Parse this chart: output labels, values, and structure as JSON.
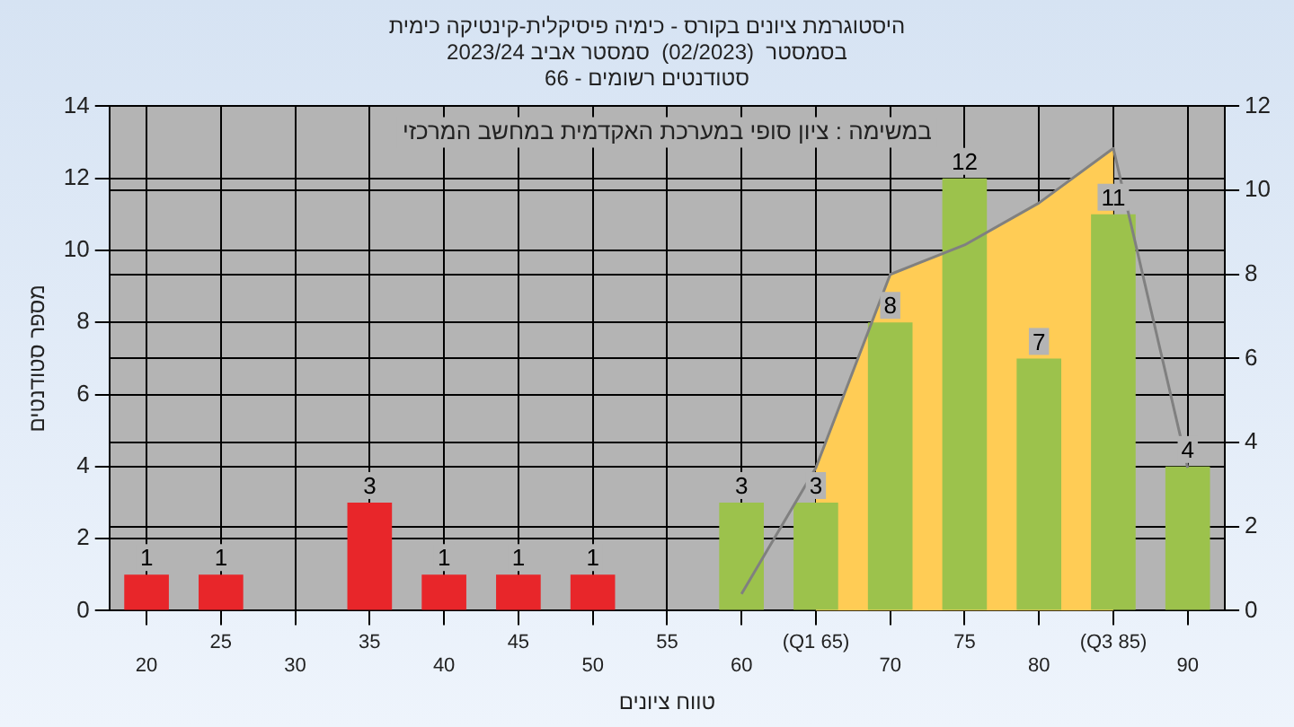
{
  "chart_data": {
    "type": "bar",
    "title": [
      "היסטוגרמת ציונים בקורס - כימיה פיסיקלית-קינטיקה כימית",
      "בסמסטר  (02/2023)  סמסטר אביב 2023/24",
      "סטודנטים רשומים - 66"
    ],
    "xlabel": "טווח ציונים",
    "ylabel": "מספר סטודנטים",
    "annotations": [
      "במשימה : ציון סופי במערכת האקדמית במחשב המרכזי"
    ],
    "categories": [
      "20",
      "25",
      "30",
      "35",
      "40",
      "45",
      "50",
      "55",
      "60",
      "(Q1 65)",
      "70",
      "75",
      "80",
      "(Q3 85)",
      "90"
    ],
    "series": [
      {
        "values": [
          1,
          1,
          null,
          3,
          1,
          1,
          1,
          null,
          3,
          3,
          8,
          12,
          7,
          11,
          4
        ],
        "value_labels": [
          "1",
          "1",
          null,
          "3",
          "1",
          "1",
          "1",
          null,
          "3",
          "3",
          "8",
          "12",
          "7",
          "11",
          "4"
        ],
        "colors": [
          "#e8262a",
          "#e8262a",
          "#e8262a",
          "#e8262a",
          "#e8262a",
          "#e8262a",
          "#e8262a",
          "#e8262a",
          "#9cc24c",
          "#9cc24c",
          "#9cc24c",
          "#9cc24c",
          "#9cc24c",
          "#9cc24c",
          "#9cc24c"
        ]
      },
      {
        "type": "area",
        "axis": "y2",
        "color": "#ffcc55",
        "values": [
          null,
          null,
          null,
          null,
          null,
          null,
          null,
          null,
          null,
          3.4,
          8,
          8.7,
          9.7,
          11,
          null
        ]
      },
      {
        "type": "line",
        "axis": "y2",
        "color": "#808080",
        "values": [
          null,
          null,
          null,
          null,
          null,
          null,
          null,
          null,
          0.4,
          3.4,
          8,
          8.7,
          9.7,
          11,
          3.4
        ]
      }
    ],
    "ylim": [
      0,
      14
    ],
    "yticks": [
      0,
      2,
      4,
      6,
      8,
      10,
      12,
      14
    ],
    "y2lim": [
      0,
      12
    ],
    "y2ticks": [
      0,
      2,
      4,
      6,
      8,
      10,
      12
    ],
    "grid": true,
    "legend": false
  }
}
